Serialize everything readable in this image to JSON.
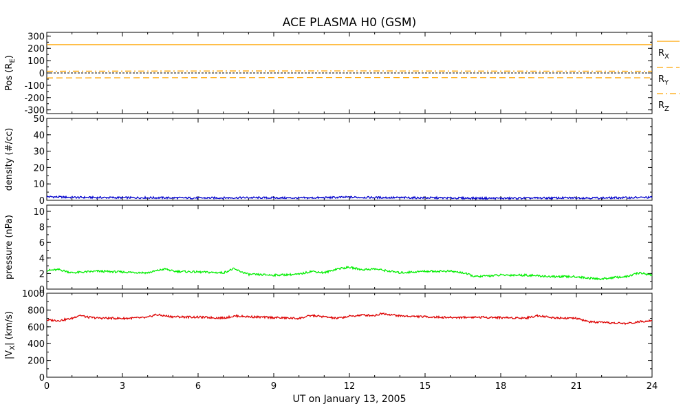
{
  "title": "ACE PLASMA H0 (GSM)",
  "xlabel": "UT on January 13, 2005",
  "colors": {
    "axis": "#000000",
    "pos": "#ffa500",
    "density": "#0000cc",
    "pressure": "#00ee00",
    "vx": "#dd0000"
  },
  "chart_data": [
    {
      "type": "line",
      "panel": "position",
      "ylabel": "Pos (R",
      "ylabel_sub": "E",
      "ylabel_close": ")",
      "x_range": [
        0,
        24
      ],
      "ylim": [
        -330,
        330
      ],
      "yticks": [
        300,
        200,
        100,
        0,
        -100,
        -200,
        -300
      ],
      "zero_line": true,
      "legend_position": "right",
      "series": [
        {
          "name": "R",
          "name_sub": "X",
          "style": "solid",
          "x": [
            0,
            24
          ],
          "values": [
            230,
            230
          ]
        },
        {
          "name": "R",
          "name_sub": "Y",
          "style": "dashed",
          "x": [
            0,
            6,
            12,
            18,
            24
          ],
          "values": [
            -40,
            -38,
            -37,
            -38,
            -39
          ]
        },
        {
          "name": "R",
          "name_sub": "Z",
          "style": "dashdot",
          "x": [
            0,
            6,
            12,
            18,
            24
          ],
          "values": [
            14,
            16,
            17,
            15,
            14
          ]
        }
      ]
    },
    {
      "type": "line",
      "panel": "density",
      "ylabel": "density (#/cc)",
      "x_range": [
        0,
        24
      ],
      "ylim": [
        0,
        50
      ],
      "yticks": [
        50,
        40,
        30,
        20,
        10,
        0
      ],
      "series": [
        {
          "x": [
            0,
            1,
            2,
            3,
            4,
            5,
            6,
            7,
            8,
            9,
            10,
            11,
            12,
            13,
            14,
            15,
            16,
            17,
            18,
            19,
            20,
            21,
            22,
            23,
            24
          ],
          "values": [
            2.2,
            1.8,
            1.7,
            1.6,
            1.6,
            1.5,
            1.4,
            1.5,
            1.6,
            1.5,
            1.4,
            1.6,
            1.9,
            1.7,
            1.6,
            1.5,
            1.4,
            1.3,
            1.2,
            1.3,
            1.4,
            1.5,
            1.4,
            1.6,
            1.8
          ]
        }
      ]
    },
    {
      "type": "line",
      "panel": "pressure",
      "ylabel": "pressure (nPa)",
      "x_range": [
        0,
        24
      ],
      "ylim": [
        0,
        10.8
      ],
      "yticks": [
        10,
        8,
        6,
        4,
        2,
        0
      ],
      "series": [
        {
          "x": [
            0,
            0.5,
            1,
            1.5,
            2,
            3,
            4,
            4.7,
            5,
            6,
            7,
            7.4,
            8,
            9,
            10,
            10.5,
            11,
            11.5,
            12,
            12.5,
            13,
            14,
            15,
            16,
            16.5,
            17,
            18,
            19,
            20,
            21,
            21.5,
            22,
            22.5,
            23,
            23.5,
            24
          ],
          "values": [
            2.4,
            2.5,
            2.1,
            2.2,
            2.3,
            2.2,
            2.1,
            2.6,
            2.3,
            2.2,
            2.1,
            2.6,
            1.9,
            1.8,
            1.9,
            2.3,
            2.1,
            2.6,
            2.8,
            2.5,
            2.6,
            2.1,
            2.3,
            2.3,
            2.1,
            1.6,
            1.8,
            1.8,
            1.6,
            1.6,
            1.4,
            1.3,
            1.5,
            1.6,
            2.1,
            1.8
          ]
        }
      ]
    },
    {
      "type": "line",
      "panel": "vx",
      "ylabel": "|V",
      "ylabel_sub": "X",
      "ylabel_close": "| (km/s)",
      "x_range": [
        0,
        24
      ],
      "ylim": [
        0,
        1000
      ],
      "yticks": [
        1000,
        800,
        600,
        400,
        200,
        0
      ],
      "series": [
        {
          "x": [
            0,
            0.5,
            1,
            1.3,
            1.6,
            2,
            3,
            4,
            4.3,
            5,
            6,
            7,
            7.5,
            8,
            9,
            10,
            10.5,
            11,
            11.5,
            12,
            12.5,
            13,
            13.3,
            14,
            15,
            16,
            17,
            18,
            19,
            19.5,
            20,
            21,
            21.5,
            22,
            23,
            23.5,
            24
          ],
          "values": [
            680,
            675,
            700,
            740,
            715,
            705,
            700,
            710,
            745,
            720,
            715,
            705,
            730,
            720,
            710,
            700,
            735,
            720,
            700,
            725,
            740,
            735,
            760,
            730,
            720,
            710,
            715,
            710,
            705,
            735,
            710,
            700,
            660,
            650,
            640,
            660,
            680
          ]
        }
      ]
    }
  ],
  "x_ticks": [
    "0",
    "3",
    "6",
    "9",
    "12",
    "15",
    "18",
    "21",
    "24"
  ]
}
